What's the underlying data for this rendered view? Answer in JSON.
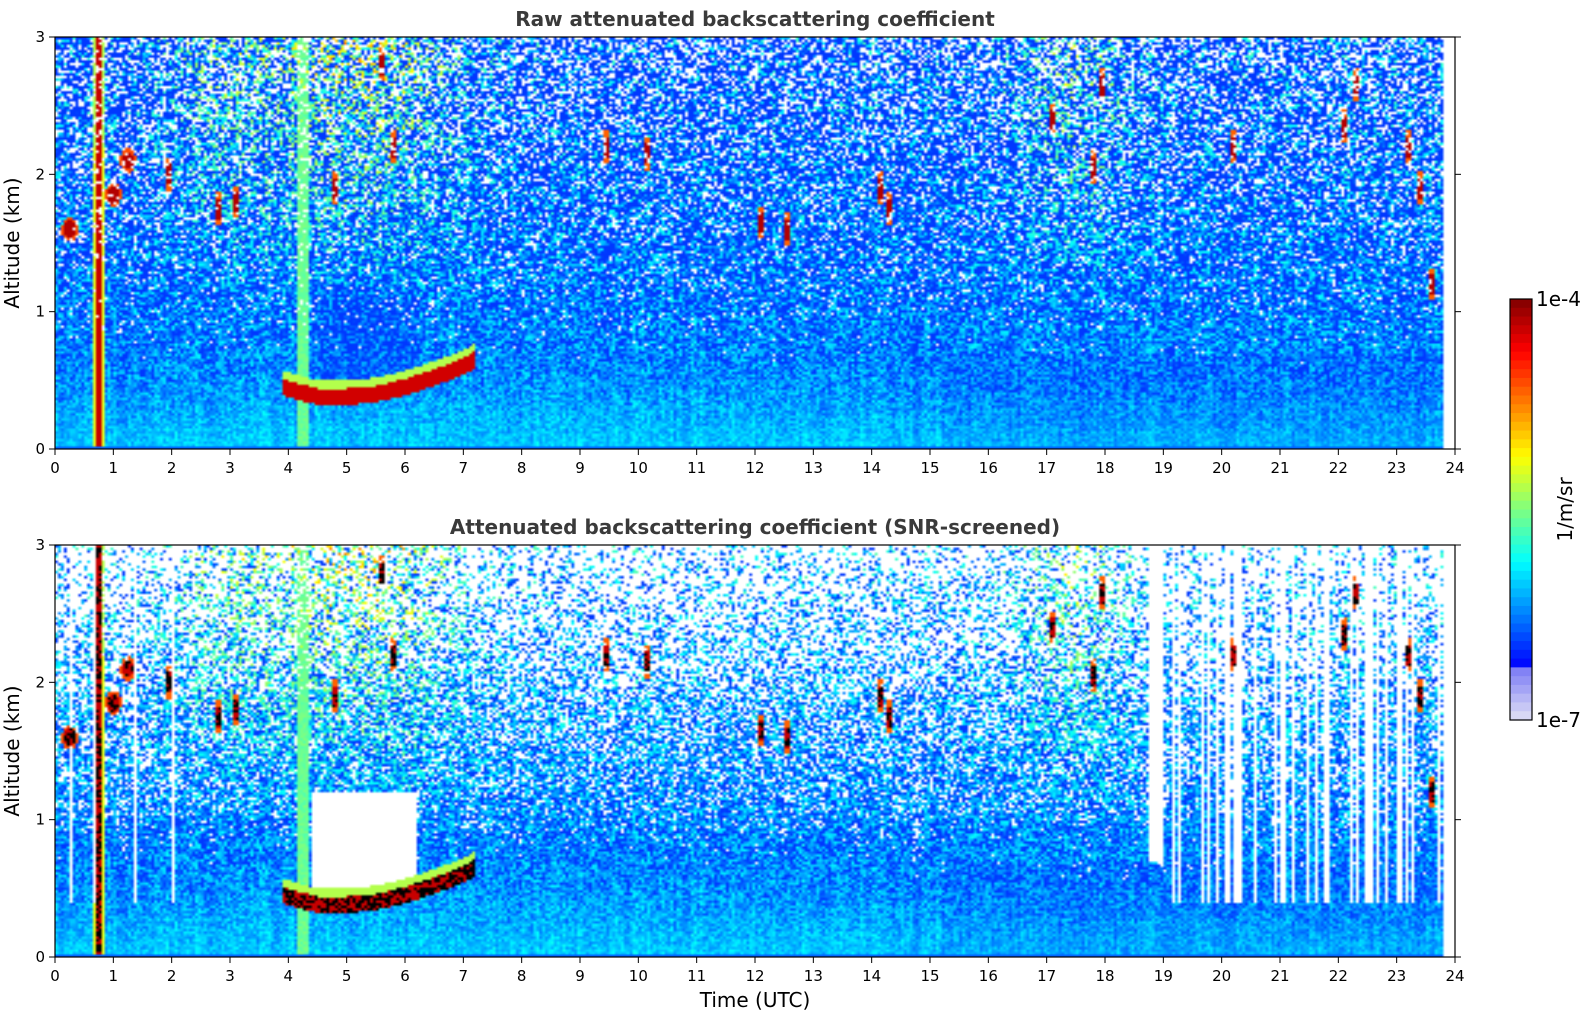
{
  "chart_data": [
    {
      "type": "heatmap",
      "title": "Raw attenuated backscattering coefficient",
      "xlabel": "",
      "ylabel": "Altitude (km)",
      "xlim": [
        0,
        24
      ],
      "ylim": [
        0,
        3
      ],
      "x_ticks": [
        0,
        1,
        2,
        3,
        4,
        5,
        6,
        7,
        8,
        9,
        10,
        11,
        12,
        13,
        14,
        15,
        16,
        17,
        18,
        19,
        20,
        21,
        22,
        23,
        24
      ],
      "y_ticks": [
        0,
        1,
        2,
        3
      ],
      "screened": false
    },
    {
      "type": "heatmap",
      "title": "Attenuated backscattering coefficient (SNR-screened)",
      "xlabel": "Time (UTC)",
      "ylabel": "Altitude (km)",
      "xlim": [
        0,
        24
      ],
      "ylim": [
        0,
        3
      ],
      "x_ticks": [
        0,
        1,
        2,
        3,
        4,
        5,
        6,
        7,
        8,
        9,
        10,
        11,
        12,
        13,
        14,
        15,
        16,
        17,
        18,
        19,
        20,
        21,
        22,
        23,
        24
      ],
      "y_ticks": [
        0,
        1,
        2,
        3
      ],
      "screened": true
    }
  ],
  "colorbar": {
    "label": "1/m/sr",
    "max_label": "1e-4",
    "min_label": "1e-7",
    "colormap": "jet",
    "range": [
      1e-07,
      0.0001
    ],
    "scale": "log"
  },
  "features": {
    "precipitation_column_x": [
      0.65,
      0.85
    ],
    "fog_column_x": [
      4.15,
      4.35
    ],
    "boundary_layer_cloud": [
      [
        3.9,
        0.45
      ],
      [
        4.5,
        0.38
      ],
      [
        5.0,
        0.38
      ],
      [
        5.5,
        0.4
      ],
      [
        6.0,
        0.45
      ],
      [
        6.5,
        0.52
      ],
      [
        7.0,
        0.6
      ],
      [
        7.2,
        0.65
      ]
    ],
    "low_cloud": [
      [
        0.25,
        1.6
      ],
      [
        1.25,
        2.1
      ],
      [
        1.0,
        1.85
      ]
    ],
    "elevated_cloud": [
      [
        1.95,
        2.0
      ],
      [
        3.1,
        1.8
      ],
      [
        2.8,
        1.75
      ],
      [
        4.8,
        1.9
      ],
      [
        5.6,
        2.8
      ],
      [
        5.8,
        2.2
      ],
      [
        9.45,
        2.2
      ],
      [
        10.15,
        2.15
      ],
      [
        12.1,
        1.65
      ],
      [
        12.55,
        1.6
      ],
      [
        14.15,
        1.9
      ],
      [
        14.3,
        1.75
      ],
      [
        17.1,
        2.4
      ],
      [
        17.8,
        2.05
      ],
      [
        17.95,
        2.65
      ],
      [
        20.2,
        2.2
      ],
      [
        22.1,
        2.35
      ],
      [
        22.3,
        2.65
      ],
      [
        23.2,
        2.2
      ],
      [
        23.4,
        1.9
      ],
      [
        23.6,
        1.2
      ]
    ],
    "screened_gap_x": [
      18.75,
      19.0
    ]
  }
}
